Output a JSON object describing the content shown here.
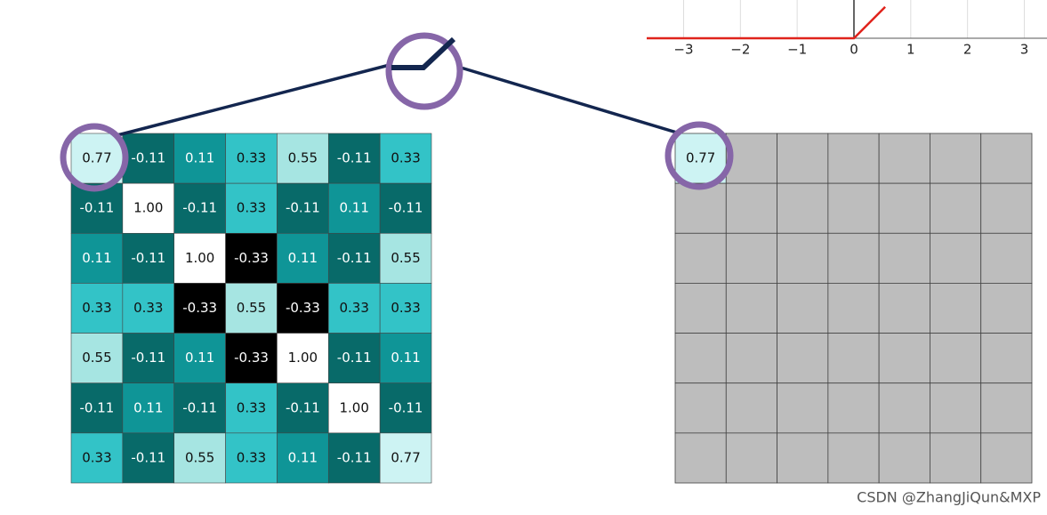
{
  "relu_plot": {
    "xlim": [
      -3.65,
      3.4
    ],
    "ylim": [
      0,
      0.67
    ],
    "xticks": [
      {
        "value": -3,
        "label": "−3"
      },
      {
        "value": -2,
        "label": "−2"
      },
      {
        "value": -1,
        "label": "−1"
      },
      0,
      1,
      2,
      3
    ],
    "line": {
      "x": [
        -3.65,
        0,
        0.55
      ],
      "y": [
        0,
        0,
        0.55
      ],
      "color": "#e0231c"
    }
  },
  "input_grid": {
    "rows": [
      [
        "0.77",
        "-0.11",
        "0.11",
        "0.33",
        "0.55",
        "-0.11",
        "0.33"
      ],
      [
        "-0.11",
        "1.00",
        "-0.11",
        "0.33",
        "-0.11",
        "0.11",
        "-0.11"
      ],
      [
        "0.11",
        "-0.11",
        "1.00",
        "-0.33",
        "0.11",
        "-0.11",
        "0.55"
      ],
      [
        "0.33",
        "0.33",
        "-0.33",
        "0.55",
        "-0.33",
        "0.33",
        "0.33"
      ],
      [
        "0.55",
        "-0.11",
        "0.11",
        "-0.33",
        "1.00",
        "-0.11",
        "0.11"
      ],
      [
        "-0.11",
        "0.11",
        "-0.11",
        "0.33",
        "-0.11",
        "1.00",
        "-0.11"
      ],
      [
        "0.33",
        "-0.11",
        "0.55",
        "0.33",
        "0.11",
        "-0.11",
        "0.77"
      ]
    ],
    "palette": {
      "0.77": "#cdf3f3",
      "1.00": "#ffffff",
      "0.55": "#a6e5e2",
      "0.33": "#33c3c7",
      "0.11": "#0f9597",
      "-0.11": "#086a69",
      "-0.33": "#000000"
    }
  },
  "output_grid": {
    "first_cell": "0.77",
    "color": "#bdbdbd"
  },
  "watermark": "CSDN @ZhangJiQun&MXP"
}
